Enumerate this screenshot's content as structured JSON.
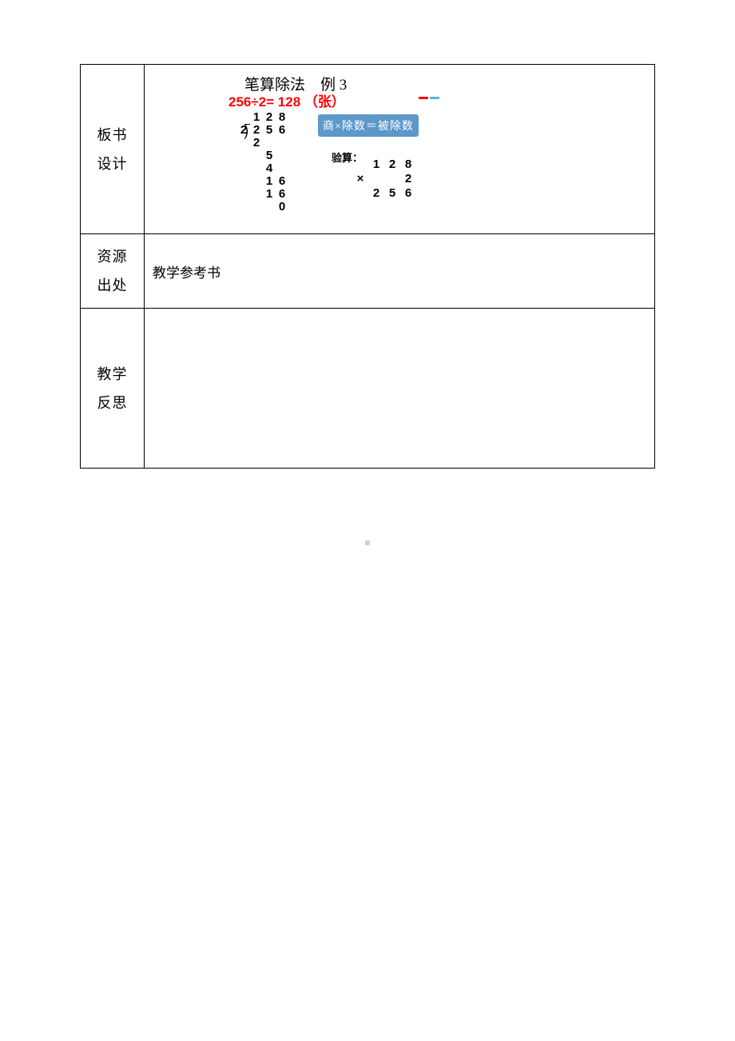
{
  "rows": {
    "board": {
      "label_line1": "板书",
      "label_line2": "设计",
      "title": "笔算除法　例 3",
      "equation": "256÷2= 128 （张）",
      "equation_color": "#ff0000",
      "badge": "商×除数＝被除数",
      "badge_bg": "#5d98c9",
      "badge_fg": "#ffffff",
      "dash_colors": [
        "#ff0000",
        "#5bb5d8"
      ],
      "longdiv": {
        "divisor": "2",
        "dividend": [
          "2",
          "5",
          "6"
        ],
        "quotient": [
          "1",
          "2",
          "8"
        ],
        "steps": [
          {
            "indent": 0,
            "digits": [
              "2"
            ],
            "underline": true
          },
          {
            "indent": 1,
            "digits": [
              "5"
            ]
          },
          {
            "indent": 1,
            "digits": [
              "4"
            ],
            "underline": true
          },
          {
            "indent": 1,
            "digits": [
              "1",
              "6"
            ]
          },
          {
            "indent": 1,
            "digits": [
              "1",
              "6"
            ],
            "underline": true
          },
          {
            "indent": 2,
            "digits": [
              "0"
            ]
          }
        ]
      },
      "verify": {
        "label": "验算：",
        "r1": [
          "",
          "1",
          "2",
          "8"
        ],
        "r2": [
          "×",
          "",
          "",
          "2"
        ],
        "r3": [
          "",
          "2",
          "5",
          "6"
        ]
      }
    },
    "resource": {
      "label_line1": "资源",
      "label_line2": "出处",
      "content": "教学参考书"
    },
    "reflection": {
      "label_line1": "教学",
      "label_line2": "反思",
      "content": ""
    }
  },
  "colors": {
    "border": "#000000",
    "text": "#000000",
    "bg": "#ffffff"
  }
}
